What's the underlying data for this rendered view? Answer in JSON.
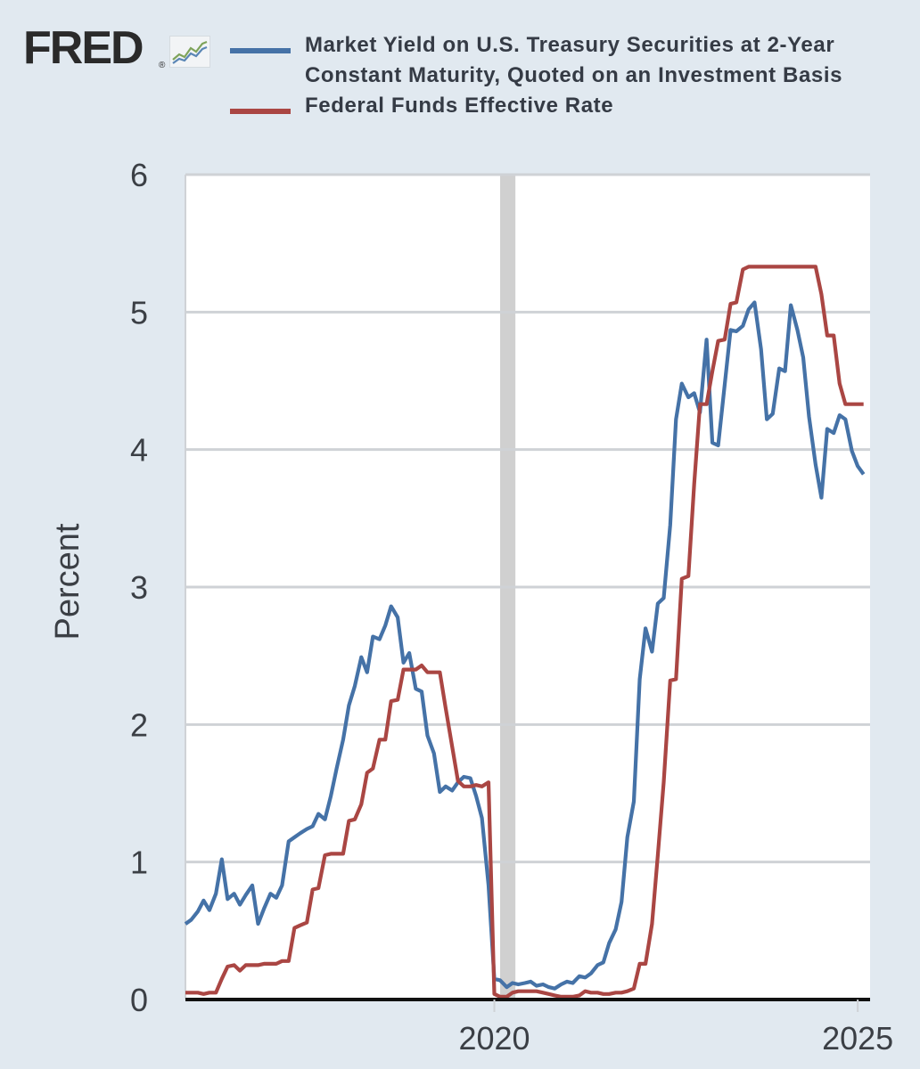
{
  "brand": {
    "logo_text": "FRED",
    "logo_mark": "®",
    "logo_icon": "line-chart-icon"
  },
  "legend": [
    {
      "label_line1": "Market Yield on U.S. Treasury Securities at 2-Year",
      "label_line2": "Constant Maturity, Quoted on an Investment Basis",
      "color": "#4572a7"
    },
    {
      "label_line1": "Federal Funds Effective Rate",
      "label_line2": "",
      "color": "#aa4643"
    }
  ],
  "chart_data": {
    "type": "line",
    "ylabel": "Percent",
    "xlabel": "",
    "ylim": [
      0,
      6
    ],
    "yticks": [
      0,
      1,
      2,
      3,
      4,
      5,
      6
    ],
    "xlim": [
      2015.75,
      2025.17
    ],
    "xticks": [
      2020,
      2025
    ],
    "xtick_labels": [
      "2020",
      "2025"
    ],
    "grid": "horizontal",
    "recession": {
      "start": 2020.08,
      "end": 2020.29
    },
    "series": [
      {
        "name": "Market Yield on U.S. Treasury Securities at 2-Year Constant Maturity, Quoted on an Investment Basis",
        "color": "#4572a7",
        "points": [
          [
            2015.75,
            0.55
          ],
          [
            2015.83,
            0.58
          ],
          [
            2015.92,
            0.64
          ],
          [
            2016.0,
            0.72
          ],
          [
            2016.08,
            0.65
          ],
          [
            2016.17,
            0.77
          ],
          [
            2016.25,
            1.02
          ],
          [
            2016.33,
            0.73
          ],
          [
            2016.42,
            0.77
          ],
          [
            2016.5,
            0.69
          ],
          [
            2016.58,
            0.76
          ],
          [
            2016.67,
            0.83
          ],
          [
            2016.75,
            0.55
          ],
          [
            2016.83,
            0.66
          ],
          [
            2016.92,
            0.77
          ],
          [
            2017.0,
            0.74
          ],
          [
            2017.08,
            0.83
          ],
          [
            2017.17,
            1.15
          ],
          [
            2017.25,
            1.18
          ],
          [
            2017.33,
            1.21
          ],
          [
            2017.42,
            1.24
          ],
          [
            2017.5,
            1.26
          ],
          [
            2017.58,
            1.35
          ],
          [
            2017.67,
            1.31
          ],
          [
            2017.75,
            1.48
          ],
          [
            2017.83,
            1.68
          ],
          [
            2017.92,
            1.89
          ],
          [
            2018.0,
            2.14
          ],
          [
            2018.08,
            2.28
          ],
          [
            2018.17,
            2.49
          ],
          [
            2018.25,
            2.38
          ],
          [
            2018.33,
            2.64
          ],
          [
            2018.42,
            2.62
          ],
          [
            2018.5,
            2.72
          ],
          [
            2018.58,
            2.86
          ],
          [
            2018.67,
            2.78
          ],
          [
            2018.75,
            2.45
          ],
          [
            2018.83,
            2.52
          ],
          [
            2018.92,
            2.26
          ],
          [
            2019.0,
            2.24
          ],
          [
            2019.08,
            1.92
          ],
          [
            2019.17,
            1.79
          ],
          [
            2019.25,
            1.51
          ],
          [
            2019.33,
            1.55
          ],
          [
            2019.42,
            1.52
          ],
          [
            2019.5,
            1.58
          ],
          [
            2019.58,
            1.62
          ],
          [
            2019.67,
            1.61
          ],
          [
            2019.75,
            1.48
          ],
          [
            2019.83,
            1.32
          ],
          [
            2019.92,
            0.83
          ],
          [
            2020.0,
            0.15
          ],
          [
            2020.08,
            0.14
          ],
          [
            2020.17,
            0.09
          ],
          [
            2020.25,
            0.12
          ],
          [
            2020.33,
            0.11
          ],
          [
            2020.42,
            0.12
          ],
          [
            2020.5,
            0.13
          ],
          [
            2020.58,
            0.1
          ],
          [
            2020.67,
            0.11
          ],
          [
            2020.75,
            0.09
          ],
          [
            2020.83,
            0.08
          ],
          [
            2020.92,
            0.11
          ],
          [
            2021.0,
            0.13
          ],
          [
            2021.08,
            0.12
          ],
          [
            2021.17,
            0.17
          ],
          [
            2021.25,
            0.16
          ],
          [
            2021.33,
            0.19
          ],
          [
            2021.42,
            0.25
          ],
          [
            2021.5,
            0.27
          ],
          [
            2021.58,
            0.41
          ],
          [
            2021.67,
            0.51
          ],
          [
            2021.75,
            0.71
          ],
          [
            2021.83,
            1.18
          ],
          [
            2021.92,
            1.44
          ],
          [
            2022.0,
            2.33
          ],
          [
            2022.08,
            2.7
          ],
          [
            2022.17,
            2.53
          ],
          [
            2022.25,
            2.88
          ],
          [
            2022.33,
            2.92
          ],
          [
            2022.42,
            3.45
          ],
          [
            2022.5,
            4.22
          ],
          [
            2022.58,
            4.48
          ],
          [
            2022.67,
            4.38
          ],
          [
            2022.75,
            4.41
          ],
          [
            2022.83,
            4.27
          ],
          [
            2022.92,
            4.8
          ],
          [
            2023.0,
            4.05
          ],
          [
            2023.08,
            4.03
          ],
          [
            2023.17,
            4.47
          ],
          [
            2023.25,
            4.87
          ],
          [
            2023.33,
            4.86
          ],
          [
            2023.42,
            4.9
          ],
          [
            2023.5,
            5.02
          ],
          [
            2023.58,
            5.07
          ],
          [
            2023.67,
            4.73
          ],
          [
            2023.75,
            4.22
          ],
          [
            2023.83,
            4.26
          ],
          [
            2023.92,
            4.59
          ],
          [
            2024.0,
            4.57
          ],
          [
            2024.08,
            5.05
          ],
          [
            2024.17,
            4.87
          ],
          [
            2024.25,
            4.67
          ],
          [
            2024.33,
            4.24
          ],
          [
            2024.42,
            3.89
          ],
          [
            2024.5,
            3.65
          ],
          [
            2024.58,
            4.15
          ],
          [
            2024.67,
            4.12
          ],
          [
            2024.75,
            4.25
          ],
          [
            2024.83,
            4.22
          ],
          [
            2024.92,
            3.99
          ],
          [
            2025.0,
            3.88
          ],
          [
            2025.08,
            3.82
          ]
        ]
      },
      {
        "name": "Federal Funds Effective Rate",
        "color": "#aa4643",
        "points": [
          [
            2015.75,
            0.05
          ],
          [
            2015.83,
            0.05
          ],
          [
            2015.92,
            0.05
          ],
          [
            2016.0,
            0.04
          ],
          [
            2016.08,
            0.05
          ],
          [
            2016.17,
            0.05
          ],
          [
            2016.25,
            0.15
          ],
          [
            2016.33,
            0.24
          ],
          [
            2016.42,
            0.25
          ],
          [
            2016.5,
            0.21
          ],
          [
            2016.58,
            0.25
          ],
          [
            2016.67,
            0.25
          ],
          [
            2016.75,
            0.25
          ],
          [
            2016.83,
            0.26
          ],
          [
            2016.92,
            0.26
          ],
          [
            2017.0,
            0.26
          ],
          [
            2017.08,
            0.28
          ],
          [
            2017.17,
            0.28
          ],
          [
            2017.25,
            0.52
          ],
          [
            2017.33,
            0.54
          ],
          [
            2017.42,
            0.56
          ],
          [
            2017.5,
            0.8
          ],
          [
            2017.58,
            0.81
          ],
          [
            2017.67,
            1.05
          ],
          [
            2017.75,
            1.06
          ],
          [
            2017.83,
            1.06
          ],
          [
            2017.92,
            1.06
          ],
          [
            2018.0,
            1.3
          ],
          [
            2018.08,
            1.31
          ],
          [
            2018.17,
            1.42
          ],
          [
            2018.25,
            1.65
          ],
          [
            2018.33,
            1.68
          ],
          [
            2018.42,
            1.89
          ],
          [
            2018.5,
            1.89
          ],
          [
            2018.58,
            2.17
          ],
          [
            2018.67,
            2.18
          ],
          [
            2018.75,
            2.4
          ],
          [
            2018.83,
            2.4
          ],
          [
            2018.92,
            2.4
          ],
          [
            2019.0,
            2.43
          ],
          [
            2019.08,
            2.38
          ],
          [
            2019.17,
            2.38
          ],
          [
            2019.25,
            2.38
          ],
          [
            2019.33,
            2.12
          ],
          [
            2019.42,
            1.84
          ],
          [
            2019.5,
            1.59
          ],
          [
            2019.58,
            1.55
          ],
          [
            2019.67,
            1.55
          ],
          [
            2019.75,
            1.56
          ],
          [
            2019.83,
            1.55
          ],
          [
            2019.92,
            1.58
          ],
          [
            2020.0,
            0.04
          ],
          [
            2020.08,
            0.02
          ],
          [
            2020.17,
            0.02
          ],
          [
            2020.25,
            0.05
          ],
          [
            2020.33,
            0.06
          ],
          [
            2020.42,
            0.06
          ],
          [
            2020.5,
            0.06
          ],
          [
            2020.58,
            0.06
          ],
          [
            2020.67,
            0.05
          ],
          [
            2020.75,
            0.04
          ],
          [
            2020.83,
            0.03
          ],
          [
            2020.92,
            0.02
          ],
          [
            2021.0,
            0.02
          ],
          [
            2021.08,
            0.02
          ],
          [
            2021.17,
            0.03
          ],
          [
            2021.25,
            0.06
          ],
          [
            2021.33,
            0.05
          ],
          [
            2021.42,
            0.05
          ],
          [
            2021.5,
            0.04
          ],
          [
            2021.58,
            0.04
          ],
          [
            2021.67,
            0.05
          ],
          [
            2021.75,
            0.05
          ],
          [
            2021.83,
            0.06
          ],
          [
            2021.92,
            0.08
          ],
          [
            2022.0,
            0.26
          ],
          [
            2022.08,
            0.26
          ],
          [
            2022.17,
            0.55
          ],
          [
            2022.25,
            1.05
          ],
          [
            2022.33,
            1.58
          ],
          [
            2022.42,
            2.32
          ],
          [
            2022.5,
            2.33
          ],
          [
            2022.58,
            3.06
          ],
          [
            2022.67,
            3.08
          ],
          [
            2022.75,
            3.75
          ],
          [
            2022.83,
            4.33
          ],
          [
            2022.92,
            4.33
          ],
          [
            2023.0,
            4.57
          ],
          [
            2023.08,
            4.79
          ],
          [
            2023.17,
            4.8
          ],
          [
            2023.25,
            5.06
          ],
          [
            2023.33,
            5.07
          ],
          [
            2023.42,
            5.31
          ],
          [
            2023.5,
            5.33
          ],
          [
            2023.58,
            5.33
          ],
          [
            2023.67,
            5.33
          ],
          [
            2023.75,
            5.33
          ],
          [
            2023.83,
            5.33
          ],
          [
            2023.92,
            5.33
          ],
          [
            2024.0,
            5.33
          ],
          [
            2024.08,
            5.33
          ],
          [
            2024.17,
            5.33
          ],
          [
            2024.25,
            5.33
          ],
          [
            2024.33,
            5.33
          ],
          [
            2024.42,
            5.33
          ],
          [
            2024.5,
            5.13
          ],
          [
            2024.58,
            4.83
          ],
          [
            2024.67,
            4.83
          ],
          [
            2024.75,
            4.48
          ],
          [
            2024.83,
            4.33
          ],
          [
            2024.92,
            4.33
          ],
          [
            2025.0,
            4.33
          ],
          [
            2025.08,
            4.33
          ]
        ]
      }
    ]
  }
}
